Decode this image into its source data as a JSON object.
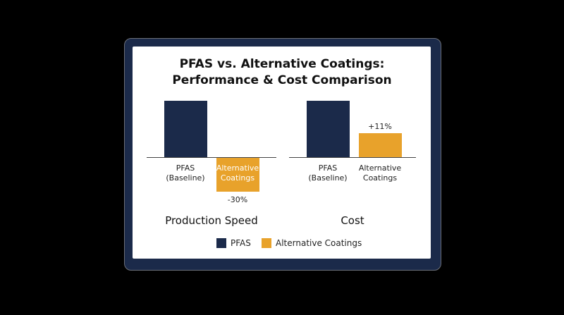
{
  "title": "PFAS vs. Alternative Coatings: Performance & Cost Comparison",
  "legend": [
    {
      "name": "PFAS",
      "color": "#1b2a4a"
    },
    {
      "name": "Alternative Coatings",
      "color": "#e8a22b"
    }
  ],
  "chart_data": [
    {
      "type": "bar",
      "xlabel": "Production Speed",
      "categories": [
        "PFAS (Baseline)",
        "Alternative Coatings"
      ],
      "values": [
        50,
        -30
      ],
      "value_labels": [
        null,
        "-30%"
      ],
      "ylim": [
        -30,
        50
      ]
    },
    {
      "type": "bar",
      "xlabel": "Cost",
      "categories": [
        "PFAS (Baseline)",
        "Alternative Coatings"
      ],
      "values": [
        26,
        11
      ],
      "value_labels": [
        null,
        "+11%"
      ],
      "ylim": [
        0,
        26
      ]
    }
  ]
}
